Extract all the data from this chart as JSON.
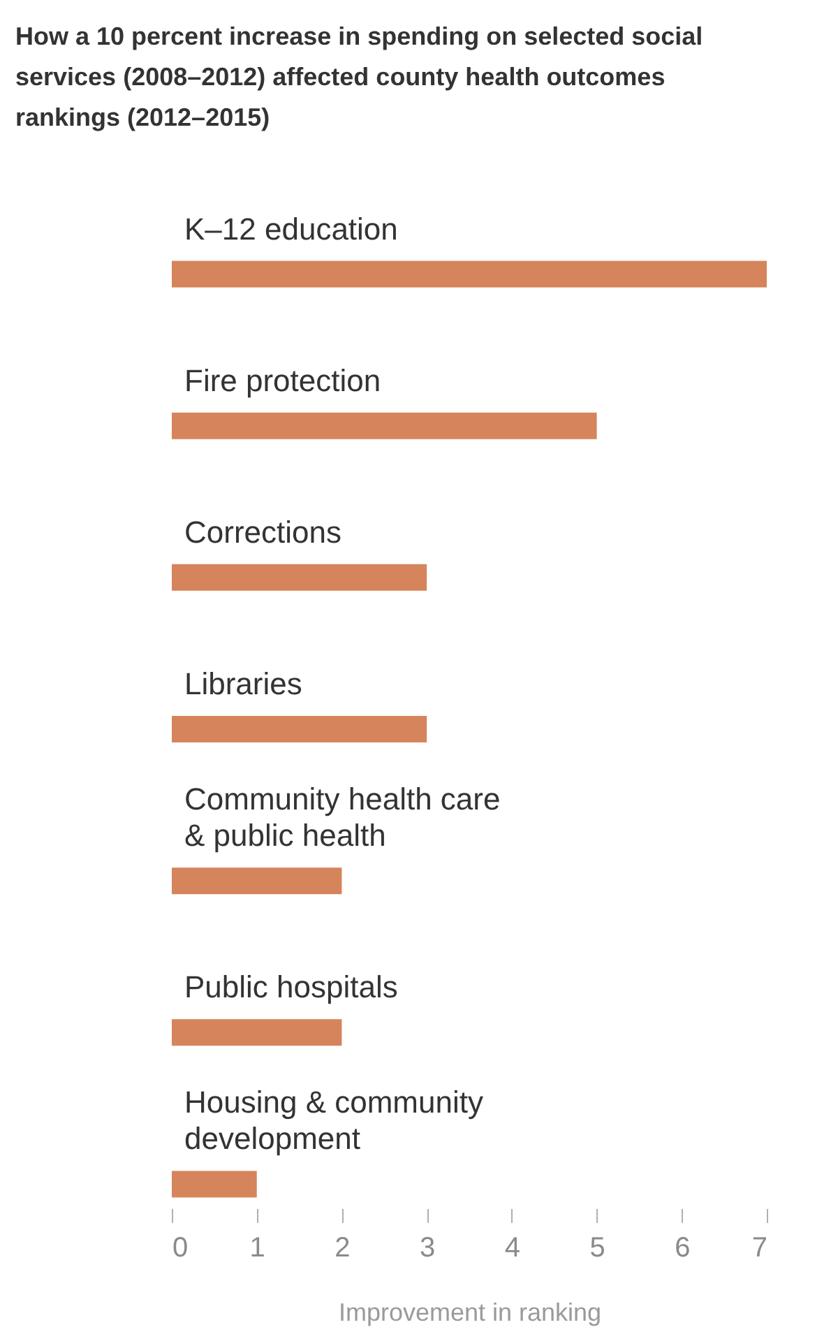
{
  "chart_data": {
    "type": "bar",
    "orientation": "horizontal",
    "title": "How a 10 percent increase in spending on selected social services (2008–2012) affected county health outcomes rankings (2012–2015)",
    "categories": [
      "K–12 education",
      "Fire protection",
      "Corrections",
      "Libraries",
      "Community health care & public health",
      "Public hospitals",
      "Housing & community development"
    ],
    "values": [
      7,
      5,
      3,
      3,
      2,
      2,
      1
    ],
    "color": "#d5845b",
    "xlabel": "Improvement in ranking",
    "xlim": [
      0,
      7
    ],
    "xticks": [
      0,
      1,
      2,
      3,
      4,
      5,
      6,
      7
    ]
  }
}
